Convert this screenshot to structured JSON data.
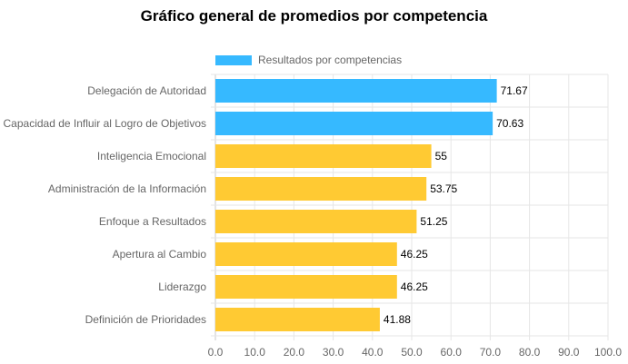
{
  "chart_data": {
    "type": "bar",
    "orientation": "horizontal",
    "title": "Gráfico general de promedios por competencia",
    "legend": {
      "label": "Resultados por competencias",
      "color": "#36b9ff",
      "position": "top"
    },
    "categories": [
      "Delegación de Autoridad",
      "Capacidad de Influir al Logro de Objetivos",
      "Inteligencia Emocional",
      "Administración de la Información",
      "Enfoque a Resultados",
      "Apertura al Cambio",
      "Liderazgo",
      "Definición de Prioridades"
    ],
    "values": [
      71.67,
      70.63,
      55,
      53.75,
      51.25,
      46.25,
      46.25,
      41.88
    ],
    "value_labels": [
      "71.67",
      "70.63",
      "55",
      "53.75",
      "51.25",
      "46.25",
      "46.25",
      "41.88"
    ],
    "bar_colors": [
      "#36b9ff",
      "#36b9ff",
      "#ffca33",
      "#ffca33",
      "#ffca33",
      "#ffca33",
      "#ffca33",
      "#ffca33"
    ],
    "xlim": [
      0,
      100
    ],
    "x_ticks": [
      "0.0",
      "10.0",
      "20.0",
      "30.0",
      "40.0",
      "50.0",
      "60.0",
      "70.0",
      "80.0",
      "90.0",
      "100.0"
    ],
    "grid": true
  }
}
